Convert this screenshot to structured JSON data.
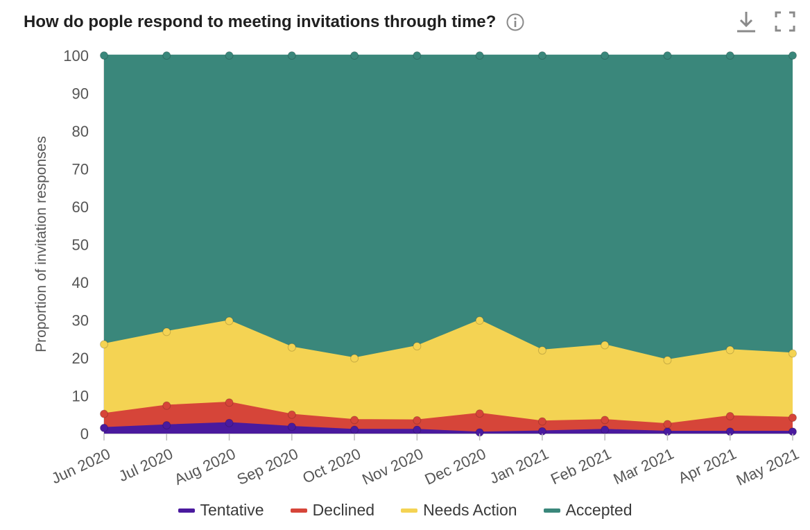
{
  "header": {
    "title": "How do pople respond to meeting invitations through time?",
    "info_icon": "info-circle-icon",
    "download_icon": "download-icon",
    "fullscreen_icon": "fullscreen-icon"
  },
  "chart_data": {
    "type": "area",
    "stacked": true,
    "title": "How do pople respond to meeting invitations through time?",
    "xlabel": "",
    "ylabel": "Proportion of invitation responses",
    "ylim": [
      0,
      100
    ],
    "yticks": [
      0,
      10,
      20,
      30,
      40,
      50,
      60,
      70,
      80,
      90,
      100
    ],
    "grid": false,
    "legend_position": "bottom",
    "categories": [
      "Jun 2020",
      "Jul 2020",
      "Aug 2020",
      "Sep 2020",
      "Oct 2020",
      "Nov 2020",
      "Dec 2020",
      "Jan 2021",
      "Feb 2021",
      "Mar 2021",
      "Apr 2021",
      "May 2021"
    ],
    "series": [
      {
        "name": "Tentative",
        "color": "#4a1a9e",
        "values": [
          1.5,
          2.2,
          2.8,
          1.8,
          1.0,
          1.0,
          0.3,
          0.6,
          1.0,
          0.5,
          0.5,
          0.5
        ]
      },
      {
        "name": "Declined",
        "color": "#d64539",
        "values": [
          3.7,
          5.2,
          5.4,
          3.2,
          2.6,
          2.5,
          5.0,
          2.6,
          2.6,
          2.0,
          4.1,
          3.7
        ]
      },
      {
        "name": "Needs Action",
        "color": "#f4d353",
        "values": [
          18.4,
          19.5,
          21.6,
          17.8,
          16.3,
          19.6,
          24.6,
          18.8,
          19.8,
          16.9,
          17.5,
          17.0
        ]
      },
      {
        "name": "Accepted",
        "color": "#3a877b",
        "values": [
          76.4,
          73.1,
          70.2,
          77.2,
          80.1,
          76.9,
          70.1,
          78.0,
          76.6,
          80.6,
          77.9,
          78.8
        ]
      }
    ]
  }
}
